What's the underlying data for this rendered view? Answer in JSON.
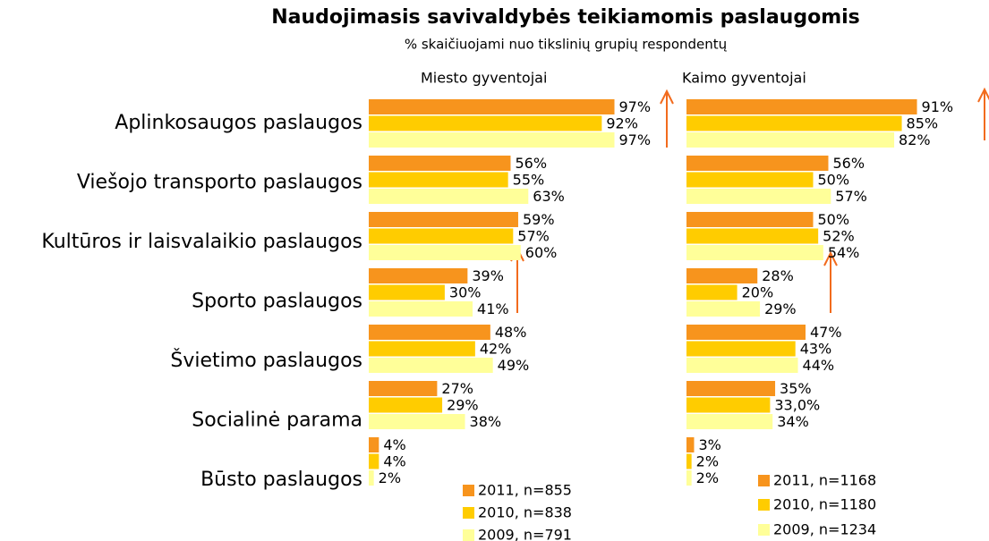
{
  "title": "Naudojimasis savivaldybės teikiamomis paslaugomis",
  "subtitle": "% skaičiuojami nuo tikslinių grupių respondentų",
  "chart_data": [
    {
      "type": "barh",
      "title": "Miesto gyventojai",
      "categories": [
        "Aplinkosaugos paslaugos",
        "Viešojo transporto paslaugos",
        "Kultūros ir laisvalaikio paslaugos",
        "Sporto paslaugos",
        "Švietimo paslaugos",
        "Socialinė parama",
        "Būsto paslaugos"
      ],
      "series": [
        {
          "name": "2011, n=855",
          "color": "#f7941d",
          "values": [
            97,
            56,
            59,
            39,
            48,
            27,
            4
          ],
          "value_labels": [
            "97%",
            "56%",
            "59%",
            "39%",
            "48%",
            "27%",
            "4%"
          ]
        },
        {
          "name": "2010, n=838",
          "color": "#ffcc00",
          "values": [
            92,
            55,
            57,
            30,
            42,
            29,
            4
          ],
          "value_labels": [
            "92%",
            "55%",
            "57%",
            "30%",
            "42%",
            "29%",
            "4%"
          ]
        },
        {
          "name": "2009, n=791",
          "color": "#ffff99",
          "values": [
            97,
            63,
            60,
            41,
            49,
            38,
            2
          ],
          "value_labels": [
            "97%",
            "63%",
            "60%",
            "41%",
            "49%",
            "38%",
            "2%"
          ]
        }
      ]
    },
    {
      "type": "barh",
      "title": "Kaimo gyventojai",
      "series": [
        {
          "name": "2011, n=1168",
          "color": "#f7941d",
          "values": [
            91,
            56,
            50,
            28,
            47,
            35,
            3
          ],
          "value_labels": [
            "91%",
            "56%",
            "50%",
            "28%",
            "47%",
            "35%",
            "3%"
          ]
        },
        {
          "name": "2010, n=1180",
          "color": "#ffcc00",
          "values": [
            85,
            50,
            52,
            20,
            43,
            33.0,
            2
          ],
          "value_labels": [
            "85%",
            "50%",
            "52%",
            "20%",
            "43%",
            "33,0%",
            "2%"
          ]
        },
        {
          "name": "2009, n=1234",
          "color": "#ffff99",
          "values": [
            82,
            57,
            54,
            29,
            44,
            34,
            2
          ],
          "value_labels": [
            "82%",
            "57%",
            "54%",
            "29%",
            "44%",
            "34%",
            "2%"
          ]
        }
      ]
    }
  ]
}
